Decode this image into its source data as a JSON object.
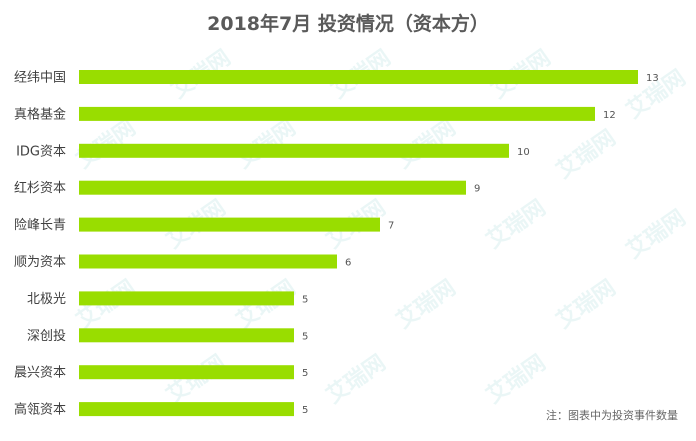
{
  "chart_data": {
    "type": "bar",
    "orientation": "horizontal",
    "title": "2018年7月 投资情况（资本方）",
    "categories": [
      "经纬中国",
      "真格基金",
      "IDG资本",
      "红杉资本",
      "险峰长青",
      "顺为资本",
      "北极光",
      "深创投",
      "晨兴资本",
      "高瓴资本"
    ],
    "values": [
      13,
      12,
      10,
      9,
      7,
      6,
      5,
      5,
      5,
      5
    ],
    "xlim": [
      0,
      13
    ],
    "grid": false,
    "legend": "none",
    "bar_color": "#99dd00",
    "note": "注：图表中为投资事件数量",
    "watermark": "艾瑞网"
  }
}
